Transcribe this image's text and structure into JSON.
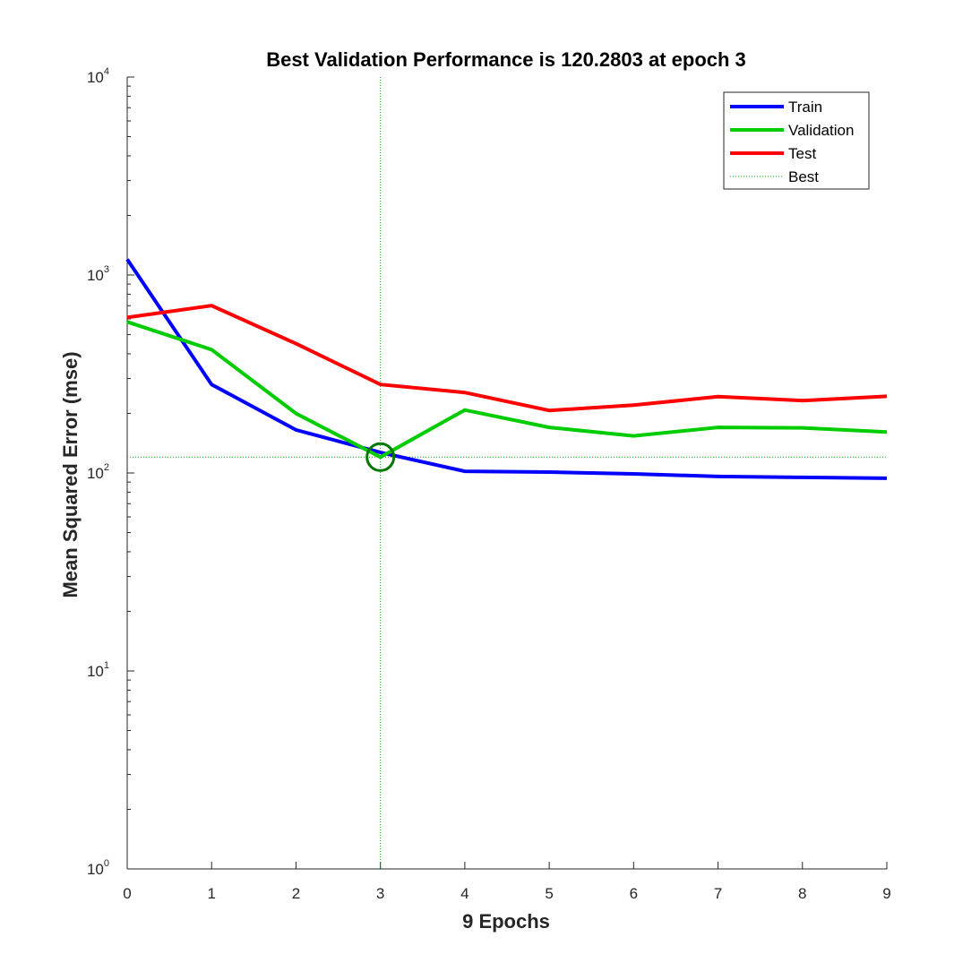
{
  "chart_data": {
    "type": "line",
    "title": "Best Validation Performance is 120.2803 at epoch 3",
    "xlabel": "9 Epochs",
    "ylabel": "Mean Squared Error  (mse)",
    "xlim": [
      0,
      9
    ],
    "ylim": [
      1,
      10000
    ],
    "yscale": "log",
    "xticks": [
      0,
      1,
      2,
      3,
      4,
      5,
      6,
      7,
      8,
      9
    ],
    "yticks": [
      {
        "base": "10",
        "exp": "0",
        "value": 1
      },
      {
        "base": "10",
        "exp": "1",
        "value": 10
      },
      {
        "base": "10",
        "exp": "2",
        "value": 100
      },
      {
        "base": "10",
        "exp": "3",
        "value": 1000
      },
      {
        "base": "10",
        "exp": "4",
        "value": 10000
      }
    ],
    "grid": false,
    "legend_position": "top-right",
    "x": [
      0,
      1,
      2,
      3,
      4,
      5,
      6,
      7,
      8,
      9
    ],
    "series": [
      {
        "name": "Train",
        "color": "#0000ff",
        "values": [
          1200,
          280,
          165,
          127,
          102,
          101,
          99,
          96,
          95,
          94
        ]
      },
      {
        "name": "Validation",
        "color": "#00cc00",
        "values": [
          580,
          420,
          200,
          120.2803,
          208,
          170,
          154,
          170,
          169,
          161
        ]
      },
      {
        "name": "Test",
        "color": "#ff0000",
        "values": [
          610,
          700,
          450,
          280,
          255,
          207,
          220,
          243,
          232,
          244
        ]
      }
    ],
    "best": {
      "name": "Best",
      "epoch": 3,
      "value": 120.2803,
      "color": "#007700",
      "style": "dotted"
    }
  }
}
